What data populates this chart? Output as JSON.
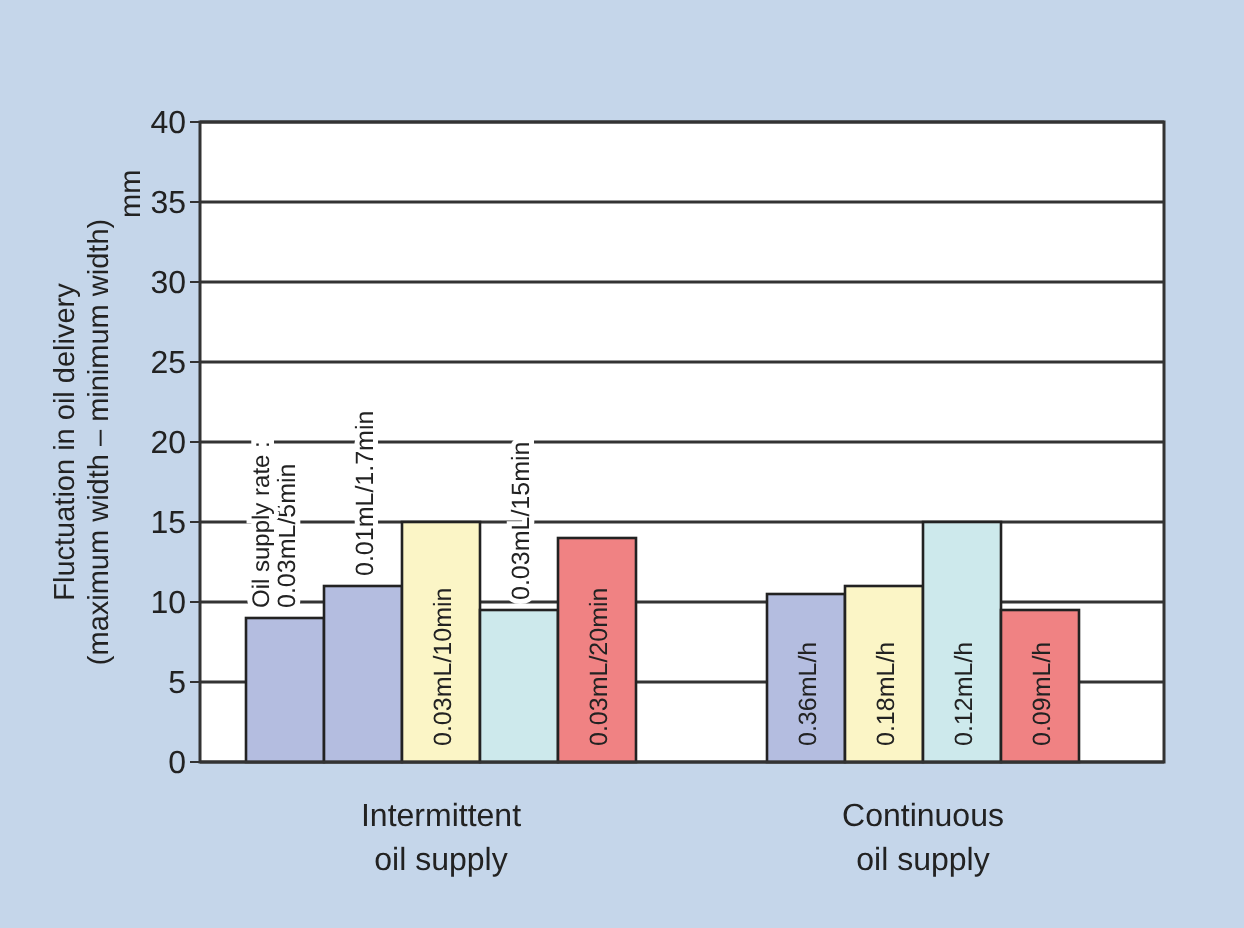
{
  "chart_data": {
    "type": "bar",
    "ylabel": "Fluctuation in oil delivery\n(maximum width – minimum width)",
    "categories": [
      "Intermittent\noil supply",
      "Continuous\noil supply"
    ],
    "series": [
      {
        "name": "0.03mL/5min",
        "color": "#b4bde0",
        "values": [
          9,
          null
        ]
      },
      {
        "name": "0.01mL/1.7min",
        "color": "#b4bde0",
        "values": [
          11,
          null
        ]
      },
      {
        "name": "0.03mL/10min",
        "color": "#fbf5c6",
        "values": [
          15,
          null
        ]
      },
      {
        "name": "0.03mL/15min",
        "color": "#cde9ec",
        "values": [
          9.5,
          null
        ]
      },
      {
        "name": "0.03mL/20min",
        "color": "#f08283",
        "values": [
          14,
          null
        ]
      },
      {
        "name": "0.36mL/h",
        "color": "#b4bde0",
        "values": [
          null,
          10.5
        ]
      },
      {
        "name": "0.18mL/h",
        "color": "#fbf5c6",
        "values": [
          null,
          11
        ]
      },
      {
        "name": "0.12mL/h",
        "color": "#cde9ec",
        "values": [
          null,
          15
        ]
      },
      {
        "name": "0.09mL/h",
        "color": "#f08283",
        "values": [
          null,
          9.5
        ]
      }
    ],
    "ylim": [
      0,
      40
    ],
    "yticks": [
      0,
      5,
      10,
      15,
      20,
      25,
      30,
      35,
      40
    ],
    "grid": "y",
    "annotations": [
      "mm",
      "Oil supply rate :"
    ]
  }
}
